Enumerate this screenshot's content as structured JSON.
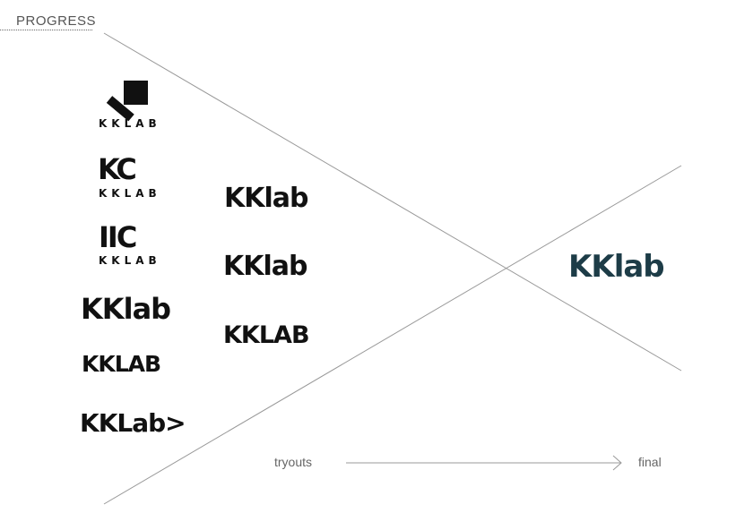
{
  "header": {
    "title": "PROGRESS"
  },
  "logos_column1": [
    {
      "wordmark": "KKLAB",
      "mark": "square-and-bar-mark"
    },
    {
      "wordmark": "KKLAB",
      "mark": "KC"
    },
    {
      "wordmark": "KKLAB",
      "mark": "IIC"
    },
    {
      "wordmark": "KKlab"
    },
    {
      "wordmark": "KKLAB"
    },
    {
      "wordmark": "KKLab>"
    }
  ],
  "logos_column2": [
    {
      "wordmark": "KKlab"
    },
    {
      "wordmark": "KKlab"
    },
    {
      "wordmark": "KKLAB"
    }
  ],
  "final_logo": {
    "wordmark": "KKlab",
    "color": "#1d3c47"
  },
  "axis": {
    "start_label": "tryouts",
    "end_label": "final"
  }
}
